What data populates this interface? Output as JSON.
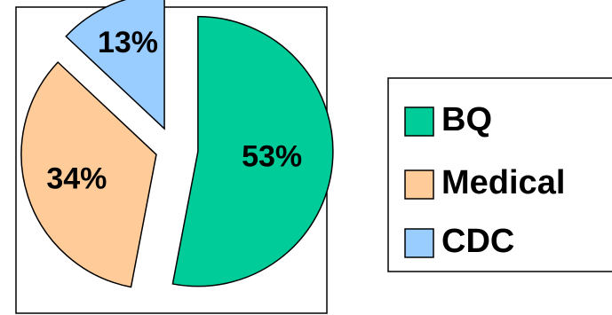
{
  "chart_data": {
    "type": "pie",
    "labels": [
      "BQ",
      "Medical",
      "CDC"
    ],
    "values": [
      53,
      34,
      13
    ],
    "value_labels": [
      "53%",
      "34%",
      "13%"
    ],
    "colors": [
      "#00CC99",
      "#FFCC99",
      "#99CCFF"
    ],
    "exploded": true,
    "legend_position": "right"
  }
}
